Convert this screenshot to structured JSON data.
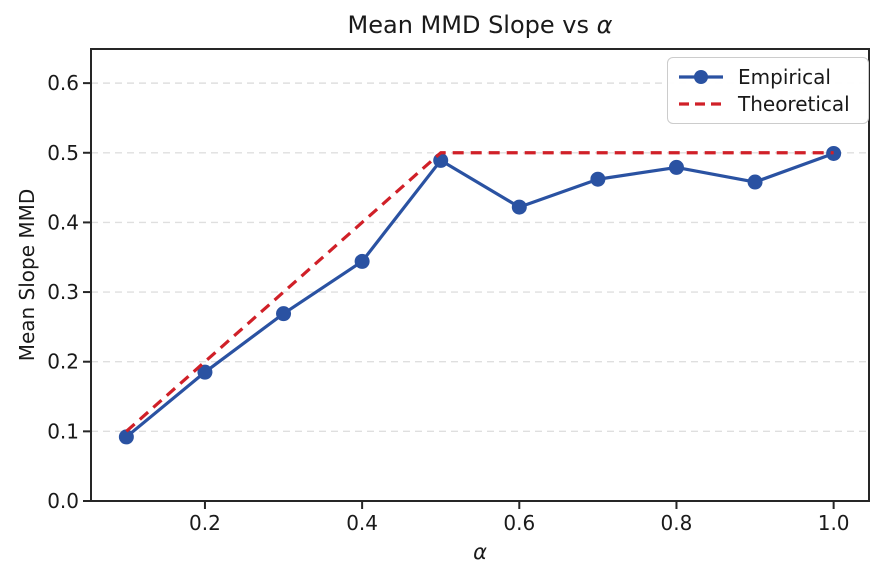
{
  "chart_data": {
    "type": "line",
    "title": "Mean MMD Slope vs α",
    "title_parts": {
      "prefix": "Mean MMD Slope vs ",
      "suffix": "α"
    },
    "xlabel": "α",
    "ylabel": "Mean Slope MMD",
    "x": [
      0.1,
      0.2,
      0.3,
      0.4,
      0.5,
      0.6,
      0.7,
      0.8,
      0.9,
      1.0
    ],
    "series": [
      {
        "name": "Empirical",
        "style": "solid",
        "marker": "circle",
        "color": "#2a52a2",
        "values": [
          0.092,
          0.185,
          0.269,
          0.344,
          0.489,
          0.422,
          0.462,
          0.479,
          0.458,
          0.499
        ]
      },
      {
        "name": "Theoretical",
        "style": "dashed",
        "marker": "none",
        "color": "#d02028",
        "values": [
          0.1,
          0.2,
          0.3,
          0.4,
          0.5,
          0.5,
          0.5,
          0.5,
          0.5,
          0.5
        ]
      }
    ],
    "xticks": [
      0.2,
      0.4,
      0.6,
      0.8,
      1.0
    ],
    "yticks": [
      0.0,
      0.1,
      0.2,
      0.3,
      0.4,
      0.5,
      0.6
    ],
    "xlim": [
      0.055,
      1.045
    ],
    "ylim": [
      0,
      0.649
    ],
    "grid": "horizontal-dashed",
    "legend_position": "upper-right"
  },
  "legend": {
    "items": [
      {
        "label": "Empirical"
      },
      {
        "label": "Theoretical"
      }
    ]
  },
  "colors": {
    "empirical": "#2a52a2",
    "theoretical": "#d02028",
    "grid": "#dfdfdf",
    "spine": "#262626",
    "text": "#1a1a1a",
    "legend_border": "#cccccc",
    "background": "#ffffff"
  }
}
